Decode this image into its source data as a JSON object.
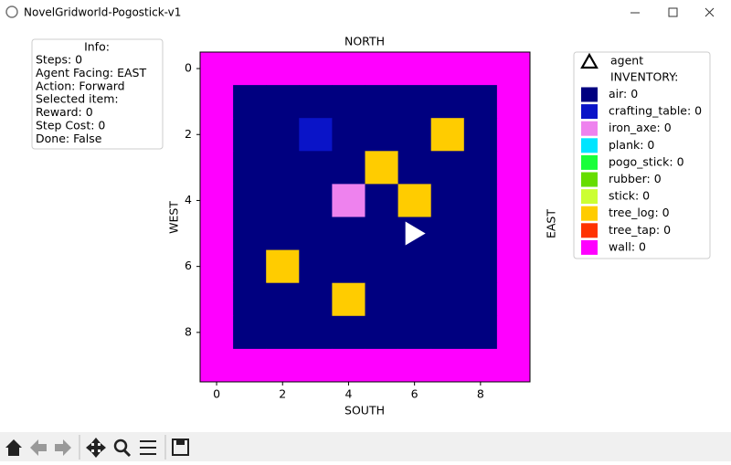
{
  "window": {
    "title": "NovelGridworld-Pogostick-v1"
  },
  "info": {
    "title": "Info:",
    "lines": [
      "Steps: 0",
      "Agent Facing: EAST",
      "Action: Forward",
      "Selected item:",
      "Reward: 0",
      "Step Cost: 0",
      "Done: False"
    ]
  },
  "plot": {
    "top_label": "NORTH",
    "bottom_label": "SOUTH",
    "left_label": "WEST",
    "right_label": "EAST",
    "xticks": [
      0,
      2,
      4,
      6,
      8
    ],
    "yticks": [
      0,
      2,
      4,
      6,
      8
    ]
  },
  "legend": {
    "agent": "agent",
    "inventory_title": "INVENTORY:",
    "items": [
      {
        "label": "air: 0",
        "color": "#000080"
      },
      {
        "label": "crafting_table: 0",
        "color": "#0a14c8"
      },
      {
        "label": "iron_axe: 0",
        "color": "#ee82ee"
      },
      {
        "label": "plank: 0",
        "color": "#00e5ff"
      },
      {
        "label": "pogo_stick: 0",
        "color": "#19ff3a"
      },
      {
        "label": "rubber: 0",
        "color": "#66dd00"
      },
      {
        "label": "stick: 0",
        "color": "#ccff33"
      },
      {
        "label": "tree_log: 0",
        "color": "#ffcc00"
      },
      {
        "label": "tree_tap: 0",
        "color": "#ff3300"
      },
      {
        "label": "wall: 0",
        "color": "#ff00ff"
      }
    ]
  }
}
